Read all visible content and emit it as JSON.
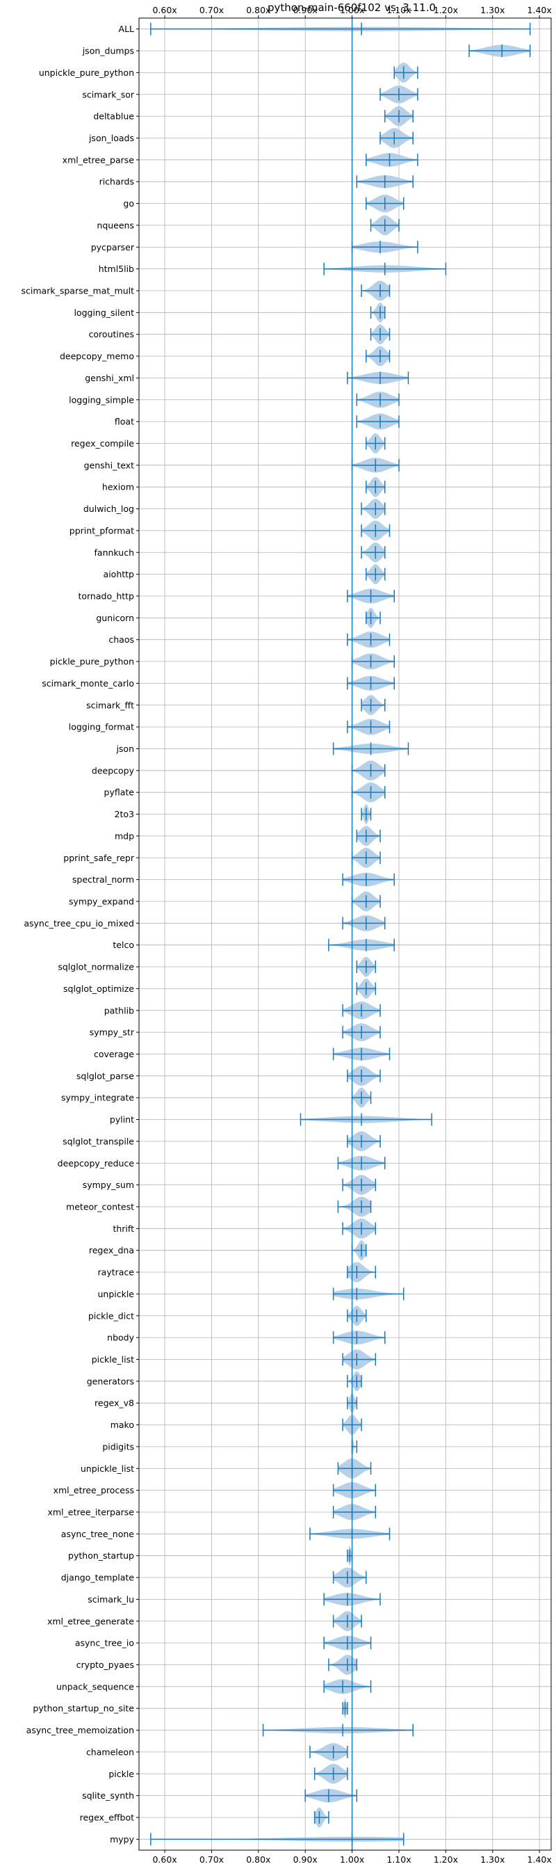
{
  "chart_data": {
    "type": "violin",
    "title": "python-main-660f102 vs. 3.11.0",
    "xlim": [
      0.545,
      1.425
    ],
    "x_ticks": [
      0.6,
      0.7,
      0.8,
      0.9,
      1.0,
      1.1,
      1.2,
      1.3,
      1.4
    ],
    "x_tick_labels": [
      "0.60x",
      "0.70x",
      "0.80x",
      "0.90x",
      "1.00x",
      "1.10x",
      "1.20x",
      "1.30x",
      "1.40x"
    ],
    "x_ticks_top_and_bottom": true,
    "reference_line": 1.0,
    "grid": true,
    "colors": {
      "violin": "#a9c8e4",
      "line": "#1f77b4"
    },
    "benchmarks": [
      {
        "name": "ALL",
        "min": 0.57,
        "mean": 1.02,
        "max": 1.38
      },
      {
        "name": "json_dumps",
        "min": 1.25,
        "mean": 1.32,
        "max": 1.38
      },
      {
        "name": "unpickle_pure_python",
        "min": 1.09,
        "mean": 1.11,
        "max": 1.14
      },
      {
        "name": "scimark_sor",
        "min": 1.06,
        "mean": 1.1,
        "max": 1.14
      },
      {
        "name": "deltablue",
        "min": 1.07,
        "mean": 1.1,
        "max": 1.13
      },
      {
        "name": "json_loads",
        "min": 1.06,
        "mean": 1.09,
        "max": 1.13
      },
      {
        "name": "xml_etree_parse",
        "min": 1.03,
        "mean": 1.08,
        "max": 1.14
      },
      {
        "name": "richards",
        "min": 1.01,
        "mean": 1.07,
        "max": 1.13
      },
      {
        "name": "go",
        "min": 1.03,
        "mean": 1.07,
        "max": 1.11
      },
      {
        "name": "nqueens",
        "min": 1.04,
        "mean": 1.07,
        "max": 1.1
      },
      {
        "name": "pycparser",
        "min": 1.0,
        "mean": 1.06,
        "max": 1.14
      },
      {
        "name": "html5lib",
        "min": 0.94,
        "mean": 1.07,
        "max": 1.2
      },
      {
        "name": "scimark_sparse_mat_mult",
        "min": 1.02,
        "mean": 1.06,
        "max": 1.08
      },
      {
        "name": "logging_silent",
        "min": 1.04,
        "mean": 1.06,
        "max": 1.07
      },
      {
        "name": "coroutines",
        "min": 1.04,
        "mean": 1.06,
        "max": 1.08
      },
      {
        "name": "deepcopy_memo",
        "min": 1.03,
        "mean": 1.06,
        "max": 1.08
      },
      {
        "name": "genshi_xml",
        "min": 0.99,
        "mean": 1.06,
        "max": 1.12
      },
      {
        "name": "logging_simple",
        "min": 1.01,
        "mean": 1.06,
        "max": 1.1
      },
      {
        "name": "float",
        "min": 1.01,
        "mean": 1.06,
        "max": 1.1
      },
      {
        "name": "regex_compile",
        "min": 1.03,
        "mean": 1.05,
        "max": 1.07
      },
      {
        "name": "genshi_text",
        "min": 1.0,
        "mean": 1.05,
        "max": 1.1
      },
      {
        "name": "hexiom",
        "min": 1.03,
        "mean": 1.05,
        "max": 1.07
      },
      {
        "name": "dulwich_log",
        "min": 1.02,
        "mean": 1.05,
        "max": 1.07
      },
      {
        "name": "pprint_pformat",
        "min": 1.02,
        "mean": 1.05,
        "max": 1.08
      },
      {
        "name": "fannkuch",
        "min": 1.02,
        "mean": 1.05,
        "max": 1.07
      },
      {
        "name": "aiohttp",
        "min": 1.03,
        "mean": 1.05,
        "max": 1.07
      },
      {
        "name": "tornado_http",
        "min": 0.99,
        "mean": 1.04,
        "max": 1.09
      },
      {
        "name": "gunicorn",
        "min": 1.03,
        "mean": 1.04,
        "max": 1.06
      },
      {
        "name": "chaos",
        "min": 0.99,
        "mean": 1.04,
        "max": 1.08
      },
      {
        "name": "pickle_pure_python",
        "min": 1.0,
        "mean": 1.04,
        "max": 1.09
      },
      {
        "name": "scimark_monte_carlo",
        "min": 0.99,
        "mean": 1.04,
        "max": 1.09
      },
      {
        "name": "scimark_fft",
        "min": 1.02,
        "mean": 1.04,
        "max": 1.07
      },
      {
        "name": "logging_format",
        "min": 0.99,
        "mean": 1.04,
        "max": 1.08
      },
      {
        "name": "json",
        "min": 0.96,
        "mean": 1.04,
        "max": 1.12
      },
      {
        "name": "deepcopy",
        "min": 1.0,
        "mean": 1.04,
        "max": 1.07
      },
      {
        "name": "pyflate",
        "min": 1.0,
        "mean": 1.04,
        "max": 1.07
      },
      {
        "name": "2to3",
        "min": 1.02,
        "mean": 1.03,
        "max": 1.04
      },
      {
        "name": "mdp",
        "min": 1.01,
        "mean": 1.03,
        "max": 1.06
      },
      {
        "name": "pprint_safe_repr",
        "min": 1.0,
        "mean": 1.03,
        "max": 1.06
      },
      {
        "name": "spectral_norm",
        "min": 0.98,
        "mean": 1.03,
        "max": 1.09
      },
      {
        "name": "sympy_expand",
        "min": 1.0,
        "mean": 1.03,
        "max": 1.06
      },
      {
        "name": "async_tree_cpu_io_mixed",
        "min": 0.98,
        "mean": 1.03,
        "max": 1.07
      },
      {
        "name": "telco",
        "min": 0.95,
        "mean": 1.03,
        "max": 1.09
      },
      {
        "name": "sqlglot_normalize",
        "min": 1.01,
        "mean": 1.03,
        "max": 1.05
      },
      {
        "name": "sqlglot_optimize",
        "min": 1.01,
        "mean": 1.03,
        "max": 1.05
      },
      {
        "name": "pathlib",
        "min": 0.98,
        "mean": 1.02,
        "max": 1.06
      },
      {
        "name": "sympy_str",
        "min": 0.98,
        "mean": 1.02,
        "max": 1.06
      },
      {
        "name": "coverage",
        "min": 0.96,
        "mean": 1.02,
        "max": 1.08
      },
      {
        "name": "sqlglot_parse",
        "min": 0.99,
        "mean": 1.02,
        "max": 1.06
      },
      {
        "name": "sympy_integrate",
        "min": 1.0,
        "mean": 1.02,
        "max": 1.04
      },
      {
        "name": "pylint",
        "min": 0.89,
        "mean": 1.02,
        "max": 1.17
      },
      {
        "name": "sqlglot_transpile",
        "min": 0.99,
        "mean": 1.02,
        "max": 1.06
      },
      {
        "name": "deepcopy_reduce",
        "min": 0.97,
        "mean": 1.02,
        "max": 1.07
      },
      {
        "name": "sympy_sum",
        "min": 0.98,
        "mean": 1.02,
        "max": 1.05
      },
      {
        "name": "meteor_contest",
        "min": 0.97,
        "mean": 1.02,
        "max": 1.04
      },
      {
        "name": "thrift",
        "min": 0.98,
        "mean": 1.02,
        "max": 1.05
      },
      {
        "name": "regex_dna",
        "min": 1.0,
        "mean": 1.02,
        "max": 1.03
      },
      {
        "name": "raytrace",
        "min": 0.99,
        "mean": 1.01,
        "max": 1.05
      },
      {
        "name": "unpickle",
        "min": 0.96,
        "mean": 1.01,
        "max": 1.11
      },
      {
        "name": "pickle_dict",
        "min": 0.99,
        "mean": 1.01,
        "max": 1.03
      },
      {
        "name": "nbody",
        "min": 0.96,
        "mean": 1.01,
        "max": 1.07
      },
      {
        "name": "pickle_list",
        "min": 0.98,
        "mean": 1.01,
        "max": 1.05
      },
      {
        "name": "generators",
        "min": 0.99,
        "mean": 1.01,
        "max": 1.02
      },
      {
        "name": "regex_v8",
        "min": 0.99,
        "mean": 1.0,
        "max": 1.01
      },
      {
        "name": "mako",
        "min": 0.98,
        "mean": 1.0,
        "max": 1.02
      },
      {
        "name": "pidigits",
        "min": 1.0,
        "mean": 1.0,
        "max": 1.01
      },
      {
        "name": "unpickle_list",
        "min": 0.97,
        "mean": 1.0,
        "max": 1.04
      },
      {
        "name": "xml_etree_process",
        "min": 0.96,
        "mean": 1.0,
        "max": 1.05
      },
      {
        "name": "xml_etree_iterparse",
        "min": 0.96,
        "mean": 1.0,
        "max": 1.05
      },
      {
        "name": "async_tree_none",
        "min": 0.91,
        "mean": 1.0,
        "max": 1.08
      },
      {
        "name": "python_startup",
        "min": 0.99,
        "mean": 0.995,
        "max": 1.0
      },
      {
        "name": "django_template",
        "min": 0.96,
        "mean": 0.99,
        "max": 1.03
      },
      {
        "name": "scimark_lu",
        "min": 0.94,
        "mean": 0.99,
        "max": 1.06
      },
      {
        "name": "xml_etree_generate",
        "min": 0.96,
        "mean": 0.99,
        "max": 1.02
      },
      {
        "name": "async_tree_io",
        "min": 0.94,
        "mean": 0.99,
        "max": 1.04
      },
      {
        "name": "crypto_pyaes",
        "min": 0.95,
        "mean": 0.99,
        "max": 1.01
      },
      {
        "name": "unpack_sequence",
        "min": 0.94,
        "mean": 0.98,
        "max": 1.04
      },
      {
        "name": "python_startup_no_site",
        "min": 0.98,
        "mean": 0.985,
        "max": 0.99
      },
      {
        "name": "async_tree_memoization",
        "min": 0.81,
        "mean": 0.98,
        "max": 1.13
      },
      {
        "name": "chameleon",
        "min": 0.91,
        "mean": 0.96,
        "max": 0.99
      },
      {
        "name": "pickle",
        "min": 0.92,
        "mean": 0.96,
        "max": 0.99
      },
      {
        "name": "sqlite_synth",
        "min": 0.9,
        "mean": 0.95,
        "max": 1.01
      },
      {
        "name": "regex_effbot",
        "min": 0.92,
        "mean": 0.93,
        "max": 0.95
      },
      {
        "name": "mypy",
        "min": 0.57,
        "mean": 1.0,
        "max": 1.11
      }
    ]
  }
}
